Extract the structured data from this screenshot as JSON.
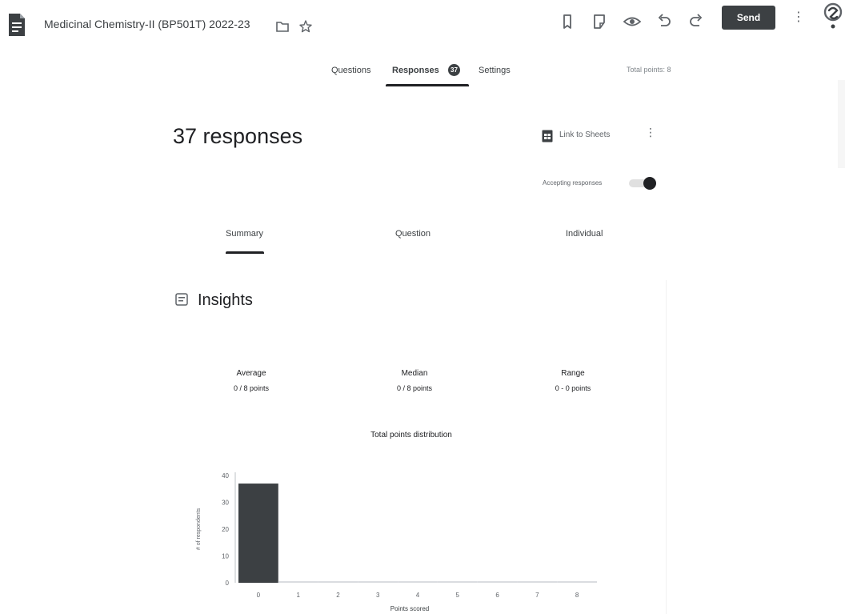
{
  "header": {
    "form_title": "Medicinal Chemistry-II (BP501T) 2022-23",
    "send_label": "Send",
    "icons": [
      "form-doc-icon",
      "folder-icon",
      "star-icon",
      "palette-icon",
      "customize-theme-icon",
      "preview-eye-icon",
      "undo-icon",
      "redo-icon",
      "more-vert-icon",
      "account-avatar-icon"
    ]
  },
  "tabs": {
    "questions": "Questions",
    "responses": "Responses",
    "responses_badge": "37",
    "settings": "Settings",
    "total_points": "Total points: 8"
  },
  "responses": {
    "count_label": "37 responses",
    "link_to_sheets": "Link to Sheets",
    "accepting_label": "Accepting responses",
    "accepting": true
  },
  "subtabs": {
    "summary": "Summary",
    "question": "Question",
    "individual": "Individual"
  },
  "insights": {
    "title": "Insights",
    "average_label": "Average",
    "average_value": "0 / 8 points",
    "median_label": "Median",
    "median_value": "0 / 8 points",
    "range_label": "Range",
    "range_value": "0 - 0 points"
  },
  "chart_data": {
    "type": "bar",
    "title": "Total points distribution",
    "xlabel": "Points scored",
    "ylabel": "# of respondents",
    "categories": [
      "0",
      "1",
      "2",
      "3",
      "4",
      "5",
      "6",
      "7",
      "8"
    ],
    "values": [
      37,
      0,
      0,
      0,
      0,
      0,
      0,
      0,
      0
    ],
    "ylim": [
      0,
      40
    ],
    "yticks": [
      "0",
      "10",
      "20",
      "30",
      "40"
    ],
    "grid": false,
    "bar_color": "#3c4043"
  }
}
